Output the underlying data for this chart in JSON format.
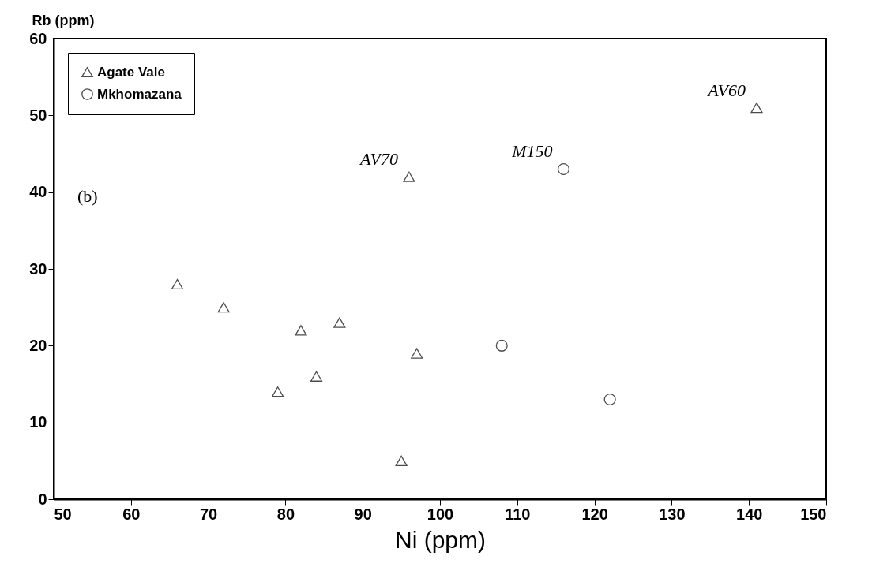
{
  "chart_data": {
    "type": "scatter",
    "xlabel": "Ni (ppm)",
    "ylabel": "Rb (ppm)",
    "xlim": [
      50,
      150
    ],
    "xticks": [
      50,
      60,
      70,
      80,
      90,
      100,
      110,
      120,
      130,
      140,
      150
    ],
    "ylim": [
      0,
      60
    ],
    "yticks": [
      0,
      10,
      20,
      30,
      40,
      50,
      60
    ],
    "grid": false,
    "legend": "top left",
    "series": [
      {
        "name": "Agate Vale",
        "color": "#000000",
        "marker": "triangle",
        "x": [
          66,
          72,
          79,
          82,
          84,
          87,
          95,
          96,
          97,
          141
        ],
        "values": [
          28,
          25,
          14,
          22,
          16,
          23,
          5,
          42,
          19,
          51
        ]
      },
      {
        "name": "Mkhomazana",
        "color": "#000000",
        "marker": "circle",
        "x": [
          108,
          116,
          122
        ],
        "values": [
          20,
          43,
          13
        ]
      }
    ],
    "annotations": [
      {
        "text": "AV70",
        "x": 96,
        "y": 42
      },
      {
        "text": "M150",
        "x": 116,
        "y": 43
      },
      {
        "text": "AV60",
        "x": 141,
        "y": 51
      },
      "(b)"
    ]
  }
}
